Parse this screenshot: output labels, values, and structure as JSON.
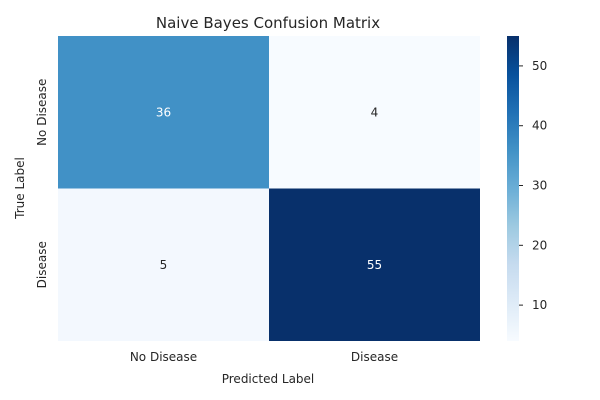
{
  "chart_data": {
    "type": "heatmap",
    "title": "Naive Bayes Confusion Matrix",
    "xlabel": "Predicted Label",
    "ylabel": "True Label",
    "x_categories": [
      "No Disease",
      "Disease"
    ],
    "y_categories": [
      "No Disease",
      "Disease"
    ],
    "values": [
      [
        36,
        4
      ],
      [
        5,
        55
      ]
    ],
    "colormap": "Blues",
    "color_range": [
      4,
      55
    ],
    "colorbar_ticks": [
      10,
      20,
      30,
      40,
      50
    ],
    "colorbar_tick_labels": [
      "10",
      "20",
      "30",
      "40",
      "50"
    ]
  }
}
